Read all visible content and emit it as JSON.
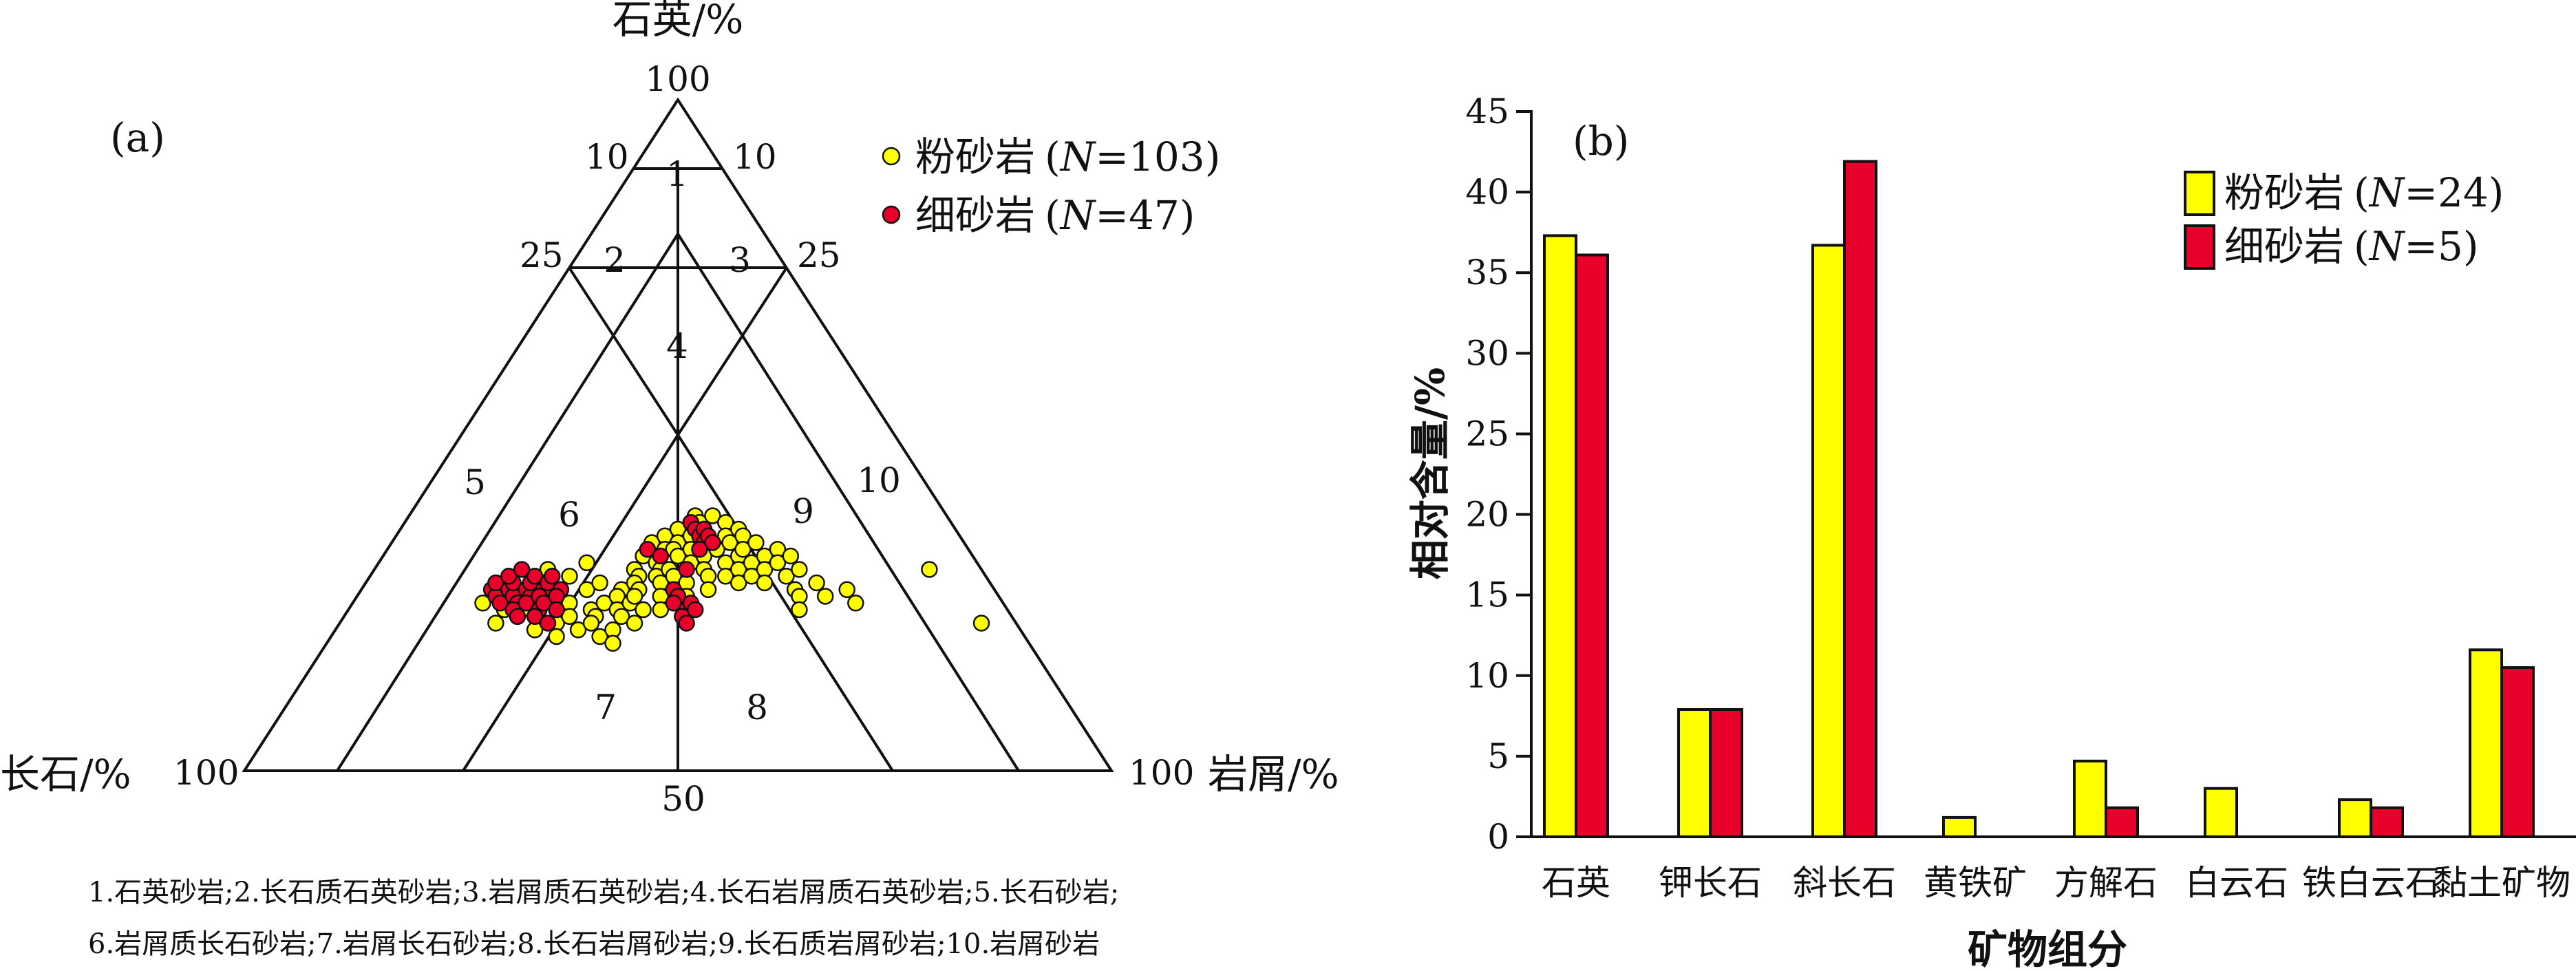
{
  "colors": {
    "silt": "#ffff00",
    "fine": "#e8002a",
    "stroke": "#111111"
  },
  "ternary": {
    "panel_label": "(a)",
    "apex_top_label": "石英/%",
    "apex_left_label": "长石/%",
    "apex_right_label": "岩屑/%",
    "top_value": "100",
    "left_value": "100",
    "right_value": "100",
    "bottom_value": "50",
    "left_side_ticks": [
      "10",
      "25"
    ],
    "right_side_ticks": [
      "10",
      "25"
    ],
    "region_labels": [
      "1",
      "2",
      "3",
      "4",
      "5",
      "6",
      "7",
      "8",
      "9",
      "10"
    ],
    "legend": [
      {
        "name": "粉砂岩",
        "n_label": "N",
        "n_value": "=103)"
      },
      {
        "name": "细砂岩",
        "n_label": "N",
        "n_value": "=47)"
      }
    ],
    "caption_line1": "1.石英砂岩;2.长石质石英砂岩;3.岩屑质石英砂岩;4.长石岩屑质石英砂岩;5.长石砂岩;",
    "caption_line2": "6.岩屑质长石砂岩;7.岩屑长石砂岩;8.长石岩屑砂岩;9.长石质岩屑砂岩;10.岩屑砂岩"
  },
  "chart_data": [
    {
      "type": "scatter",
      "title": "(a)",
      "components": [
        "石英",
        "长石",
        "岩屑"
      ],
      "series": [
        {
          "name": "粉砂岩 (N=103)",
          "points_Q_F_R": [
            [
              25,
              60,
              15
            ],
            [
              24,
              58,
              18
            ],
            [
              27,
              55,
              18
            ],
            [
              22,
              60,
              18
            ],
            [
              26,
              53,
              21
            ],
            [
              23,
              57,
              20
            ],
            [
              28,
              52,
              20
            ],
            [
              24,
              55,
              21
            ],
            [
              30,
              50,
              20
            ],
            [
              26,
              52,
              22
            ],
            [
              21,
              56,
              23
            ],
            [
              29,
              48,
              23
            ],
            [
              25,
              50,
              25
            ],
            [
              22,
              53,
              25
            ],
            [
              27,
              47,
              26
            ],
            [
              23,
              51,
              26
            ],
            [
              20,
              54,
              26
            ],
            [
              31,
              45,
              24
            ],
            [
              24,
              48,
              28
            ],
            [
              28,
              45,
              27
            ],
            [
              21,
              51,
              28
            ],
            [
              34,
              36,
              30
            ],
            [
              30,
              40,
              30
            ],
            [
              27,
              43,
              30
            ],
            [
              32,
              38,
              30
            ],
            [
              25,
              46,
              29
            ],
            [
              23,
              48,
              29
            ],
            [
              35,
              34,
              31
            ],
            [
              29,
              40,
              31
            ],
            [
              33,
              35,
              32
            ],
            [
              26,
              44,
              30
            ],
            [
              22,
              49,
              29
            ],
            [
              36,
              32,
              32
            ],
            [
              31,
              37,
              32
            ],
            [
              28,
              41,
              31
            ],
            [
              24,
              45,
              31
            ],
            [
              20,
              49,
              31
            ],
            [
              37,
              30,
              33
            ],
            [
              34,
              33,
              33
            ],
            [
              30,
              37,
              33
            ],
            [
              27,
              41,
              32
            ],
            [
              25,
              43,
              32
            ],
            [
              21,
              47,
              32
            ],
            [
              38,
              29,
              33
            ],
            [
              33,
              34,
              33
            ],
            [
              29,
              38,
              33
            ],
            [
              26,
              42,
              32
            ],
            [
              23,
              45,
              32
            ],
            [
              19,
              48,
              33
            ],
            [
              37,
              29,
              34
            ],
            [
              32,
              34,
              34
            ],
            [
              28,
              38,
              34
            ],
            [
              22,
              44,
              34
            ],
            [
              35,
              31,
              34
            ],
            [
              30,
              36,
              34
            ],
            [
              24,
              42,
              34
            ],
            [
              36,
              29,
              35
            ],
            [
              33,
              32,
              35
            ],
            [
              29,
              36,
              35
            ],
            [
              26,
              39,
              35
            ],
            [
              38,
              27,
              35
            ],
            [
              34,
              30,
              36
            ],
            [
              31,
              33,
              36
            ],
            [
              27,
              37,
              36
            ],
            [
              24,
              40,
              36
            ],
            [
              37,
              26,
              37
            ],
            [
              32,
              31,
              37
            ],
            [
              28,
              35,
              37
            ],
            [
              35,
              27,
              38
            ],
            [
              30,
              32,
              38
            ],
            [
              26,
              36,
              38
            ],
            [
              33,
              29,
              38
            ],
            [
              36,
              25,
              39
            ],
            [
              29,
              32,
              39
            ],
            [
              34,
              27,
              39
            ],
            [
              31,
              29,
              40
            ],
            [
              27,
              33,
              40
            ],
            [
              35,
              25,
              40
            ],
            [
              32,
              27,
              41
            ],
            [
              29,
              30,
              41
            ],
            [
              33,
              26,
              41
            ],
            [
              30,
              28,
              42
            ],
            [
              34,
              24,
              42
            ],
            [
              31,
              26,
              43
            ],
            [
              28,
              29,
              43
            ],
            [
              32,
              24,
              44
            ],
            [
              29,
              27,
              44
            ],
            [
              33,
              22,
              45
            ],
            [
              30,
              25,
              45
            ],
            [
              31,
              23,
              46
            ],
            [
              28,
              26,
              46
            ],
            [
              32,
              21,
              47
            ],
            [
              29,
              23,
              48
            ],
            [
              30,
              21,
              49
            ],
            [
              27,
              23,
              50
            ],
            [
              28,
              20,
              52
            ],
            [
              26,
              20,
              54
            ],
            [
              27,
              17,
              56
            ],
            [
              25,
              17,
              58
            ],
            [
              30,
              6,
              64
            ],
            [
              22,
              4,
              74
            ],
            [
              26,
              23,
              51
            ],
            [
              24,
              24,
              52
            ]
          ]
        },
        {
          "name": "细砂岩 (N=47)",
          "points_Q_F_R": [
            [
              27,
              58,
              15
            ],
            [
              26,
              58,
              16
            ],
            [
              28,
              57,
              15
            ],
            [
              25,
              58,
              17
            ],
            [
              27,
              56,
              17
            ],
            [
              26,
              56,
              18
            ],
            [
              28,
              55,
              17
            ],
            [
              25,
              56,
              19
            ],
            [
              27,
              54,
              19
            ],
            [
              24,
              57,
              19
            ],
            [
              29,
              55,
              16
            ],
            [
              26,
              54,
              20
            ],
            [
              28,
              53,
              19
            ],
            [
              25,
              55,
              20
            ],
            [
              27,
              52,
              21
            ],
            [
              23,
              57,
              20
            ],
            [
              29,
              52,
              19
            ],
            [
              26,
              53,
              21
            ],
            [
              24,
              54,
              22
            ],
            [
              28,
              51,
              21
            ],
            [
              25,
              53,
              22
            ],
            [
              27,
              50,
              23
            ],
            [
              23,
              55,
              22
            ],
            [
              26,
              51,
              23
            ],
            [
              24,
              52,
              24
            ],
            [
              22,
              54,
              24
            ],
            [
              30,
              53,
              17
            ],
            [
              29,
              50,
              21
            ],
            [
              27,
              37,
              36
            ],
            [
              26,
              37,
              37
            ],
            [
              25,
              38,
              37
            ],
            [
              24,
              37,
              39
            ],
            [
              25,
              36,
              39
            ],
            [
              23,
              38,
              39
            ],
            [
              24,
              36,
              40
            ],
            [
              22,
              38,
              40
            ],
            [
              33,
              37,
              30
            ],
            [
              32,
              36,
              32
            ],
            [
              37,
              30,
              33
            ],
            [
              36,
              30,
              34
            ],
            [
              35,
              30,
              35
            ],
            [
              34,
              30,
              36
            ],
            [
              36,
              29,
              35
            ],
            [
              35,
              29,
              36
            ],
            [
              34,
              29,
              37
            ],
            [
              30,
              34,
              36
            ],
            [
              33,
              31,
              36
            ]
          ]
        }
      ]
    },
    {
      "type": "bar",
      "title": "(b)",
      "xlabel": "矿物组分",
      "ylabel": "相对含量/%",
      "ylim": [
        0,
        45
      ],
      "yticks": [
        0,
        5,
        10,
        15,
        20,
        25,
        30,
        35,
        40,
        45
      ],
      "categories": [
        "石英",
        "钾长石",
        "斜长石",
        "黄铁矿",
        "方解石",
        "白云石",
        "铁白云石",
        "黏土矿物"
      ],
      "series": [
        {
          "name": "粉砂岩 (N=24)",
          "values": [
            37.3,
            7.9,
            36.7,
            1.2,
            4.7,
            3.0,
            2.3,
            11.6
          ]
        },
        {
          "name": "细砂岩 (N=5)",
          "values": [
            36.1,
            7.9,
            41.9,
            0,
            1.8,
            0,
            1.8,
            10.5
          ]
        }
      ],
      "legend": [
        {
          "name": "粉砂岩",
          "n_label": "N",
          "n_value": "=24)"
        },
        {
          "name": "细砂岩",
          "n_label": "N",
          "n_value": "=5)"
        }
      ]
    }
  ]
}
